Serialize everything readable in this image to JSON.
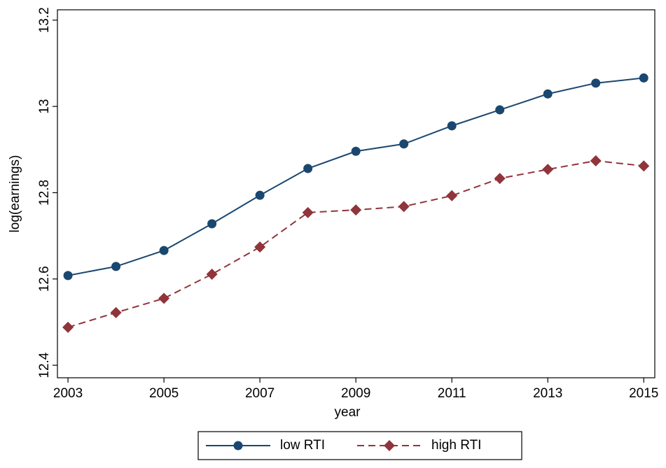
{
  "chart_data": {
    "type": "line",
    "x_label": "year",
    "y_label": "log(earnings)",
    "x": [
      2003,
      2004,
      2005,
      2006,
      2007,
      2008,
      2009,
      2010,
      2011,
      2012,
      2013,
      2014,
      2015
    ],
    "series": [
      {
        "name": "low RTI",
        "color": "#1a476f",
        "marker": "circle",
        "dashed": false,
        "values": [
          12.608,
          12.629,
          12.666,
          12.728,
          12.794,
          12.856,
          12.896,
          12.913,
          12.955,
          12.992,
          13.029,
          13.054,
          13.066
        ]
      },
      {
        "name": "high RTI",
        "color": "#90353b",
        "marker": "diamond",
        "dashed": true,
        "values": [
          12.488,
          12.522,
          12.555,
          12.611,
          12.674,
          12.754,
          12.76,
          12.768,
          12.793,
          12.833,
          12.854,
          12.874,
          12.862
        ]
      }
    ],
    "xlim": [
      2002.78,
      2015.23
    ],
    "xticks": [
      2003,
      2005,
      2007,
      2009,
      2011,
      2013,
      2015
    ],
    "ylim": [
      12.371,
      13.224
    ],
    "yticks": [
      12.4,
      12.6,
      12.8,
      13,
      13.2
    ],
    "grid": false,
    "legend": "bottom"
  }
}
